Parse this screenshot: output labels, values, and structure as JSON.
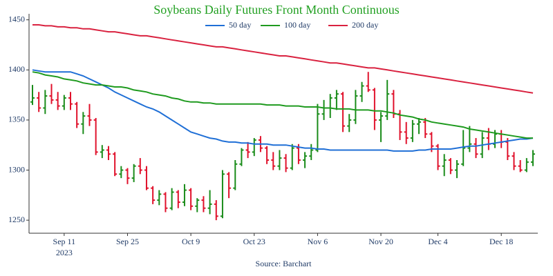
{
  "chart_data": {
    "type": "ohlc",
    "title": "Soybeans Daily Futures Front Month Continuous",
    "title_color": "#22a022",
    "categories": [
      null,
      null,
      null,
      null,
      null,
      "Sep 11",
      null,
      null,
      null,
      null,
      null,
      null,
      null,
      null,
      null,
      "Sep 25",
      null,
      null,
      null,
      null,
      null,
      null,
      null,
      null,
      null,
      "Oct 9",
      null,
      null,
      null,
      null,
      null,
      null,
      null,
      null,
      null,
      "Oct 23",
      null,
      null,
      null,
      null,
      null,
      null,
      null,
      null,
      null,
      "Nov 6",
      null,
      null,
      null,
      null,
      null,
      null,
      null,
      null,
      null,
      "Nov 20",
      null,
      null,
      null,
      null,
      null,
      null,
      null,
      null,
      "Dec 4",
      null,
      null,
      null,
      null,
      null,
      null,
      null,
      null,
      null,
      "Dec 18",
      null,
      null,
      null,
      null,
      null
    ],
    "year_label": "2023",
    "source": "Source: Barchart",
    "up_color": "#1a8c1a",
    "down_color": "#e0112b",
    "ohlc": [
      [
        1368,
        1385,
        1365,
        1372
      ],
      [
        1372,
        1378,
        1358,
        1362
      ],
      [
        1362,
        1380,
        1356,
        1374
      ],
      [
        1374,
        1386,
        1366,
        1370
      ],
      [
        1370,
        1378,
        1360,
        1364
      ],
      [
        1364,
        1375,
        1360,
        1372
      ],
      [
        1372,
        1378,
        1360,
        1366
      ],
      [
        1366,
        1368,
        1342,
        1346
      ],
      [
        1346,
        1358,
        1336,
        1354
      ],
      [
        1354,
        1366,
        1344,
        1350
      ],
      [
        1350,
        1352,
        1315,
        1318
      ],
      [
        1318,
        1325,
        1312,
        1320
      ],
      [
        1320,
        1324,
        1310,
        1316
      ],
      [
        1316,
        1318,
        1294,
        1296
      ],
      [
        1296,
        1304,
        1292,
        1300
      ],
      [
        1300,
        1302,
        1286,
        1292
      ],
      [
        1292,
        1306,
        1288,
        1304
      ],
      [
        1304,
        1312,
        1296,
        1300
      ],
      [
        1300,
        1304,
        1280,
        1282
      ],
      [
        1282,
        1284,
        1266,
        1270
      ],
      [
        1270,
        1280,
        1265,
        1276
      ],
      [
        1276,
        1278,
        1258,
        1262
      ],
      [
        1262,
        1282,
        1260,
        1278
      ],
      [
        1278,
        1280,
        1262,
        1268
      ],
      [
        1268,
        1286,
        1264,
        1280
      ],
      [
        1280,
        1282,
        1260,
        1264
      ],
      [
        1264,
        1272,
        1258,
        1270
      ],
      [
        1270,
        1274,
        1258,
        1262
      ],
      [
        1262,
        1280,
        1256,
        1266
      ],
      [
        1266,
        1270,
        1250,
        1254
      ],
      [
        1254,
        1300,
        1252,
        1296
      ],
      [
        1296,
        1298,
        1272,
        1282
      ],
      [
        1282,
        1310,
        1280,
        1306
      ],
      [
        1306,
        1322,
        1304,
        1320
      ],
      [
        1320,
        1328,
        1312,
        1318
      ],
      [
        1318,
        1332,
        1314,
        1330
      ],
      [
        1330,
        1334,
        1318,
        1322
      ],
      [
        1322,
        1324,
        1306,
        1310
      ],
      [
        1310,
        1318,
        1300,
        1304
      ],
      [
        1304,
        1320,
        1300,
        1312
      ],
      [
        1312,
        1316,
        1298,
        1302
      ],
      [
        1302,
        1326,
        1300,
        1322
      ],
      [
        1322,
        1326,
        1306,
        1310
      ],
      [
        1310,
        1318,
        1302,
        1314
      ],
      [
        1314,
        1326,
        1310,
        1320
      ],
      [
        1320,
        1366,
        1318,
        1356
      ],
      [
        1356,
        1370,
        1350,
        1362
      ],
      [
        1362,
        1376,
        1352,
        1372
      ],
      [
        1372,
        1380,
        1360,
        1376
      ],
      [
        1376,
        1378,
        1338,
        1344
      ],
      [
        1344,
        1356,
        1338,
        1350
      ],
      [
        1350,
        1380,
        1346,
        1374
      ],
      [
        1374,
        1388,
        1368,
        1384
      ],
      [
        1384,
        1398,
        1378,
        1380
      ],
      [
        1380,
        1382,
        1340,
        1350
      ],
      [
        1350,
        1358,
        1328,
        1354
      ],
      [
        1354,
        1390,
        1350,
        1376
      ],
      [
        1376,
        1380,
        1352,
        1356
      ],
      [
        1356,
        1360,
        1330,
        1338
      ],
      [
        1338,
        1348,
        1326,
        1332
      ],
      [
        1332,
        1350,
        1328,
        1346
      ],
      [
        1346,
        1352,
        1336,
        1348
      ],
      [
        1348,
        1352,
        1332,
        1336
      ],
      [
        1336,
        1338,
        1318,
        1324
      ],
      [
        1324,
        1326,
        1300,
        1304
      ],
      [
        1304,
        1316,
        1294,
        1310
      ],
      [
        1310,
        1312,
        1296,
        1300
      ],
      [
        1300,
        1310,
        1292,
        1306
      ],
      [
        1306,
        1340,
        1304,
        1322
      ],
      [
        1322,
        1344,
        1318,
        1326
      ],
      [
        1326,
        1332,
        1312,
        1316
      ],
      [
        1316,
        1338,
        1312,
        1332
      ],
      [
        1332,
        1342,
        1320,
        1326
      ],
      [
        1326,
        1340,
        1322,
        1336
      ],
      [
        1336,
        1340,
        1322,
        1328
      ],
      [
        1328,
        1332,
        1310,
        1314
      ],
      [
        1314,
        1318,
        1300,
        1304
      ],
      [
        1304,
        1310,
        1298,
        1300
      ],
      [
        1300,
        1312,
        1298,
        1308
      ],
      [
        1308,
        1320,
        1304,
        1316
      ]
    ],
    "series": [
      {
        "name": "50 day",
        "color": "#1f6fd6",
        "values": [
          1400,
          1399,
          1398,
          1398,
          1398,
          1398,
          1398,
          1396,
          1394,
          1391,
          1388,
          1385,
          1382,
          1378,
          1375,
          1372,
          1369,
          1366,
          1363,
          1361,
          1358,
          1354,
          1350,
          1346,
          1342,
          1338,
          1336,
          1334,
          1332,
          1331,
          1329,
          1328,
          1328,
          1327,
          1327,
          1326,
          1326,
          1326,
          1325,
          1325,
          1325,
          1324,
          1323,
          1322,
          1322,
          1321,
          1321,
          1320,
          1320,
          1320,
          1320,
          1320,
          1320,
          1320,
          1320,
          1320,
          1320,
          1319,
          1319,
          1319,
          1319,
          1320,
          1320,
          1321,
          1321,
          1321,
          1321,
          1322,
          1323,
          1324,
          1324,
          1325,
          1326,
          1327,
          1328,
          1329,
          1330,
          1331,
          1331,
          1332
        ]
      },
      {
        "name": "100 day",
        "color": "#1e9a1e",
        "values": [
          1398,
          1397,
          1395,
          1394,
          1393,
          1391,
          1390,
          1389,
          1387,
          1386,
          1385,
          1385,
          1384,
          1383,
          1383,
          1382,
          1380,
          1379,
          1378,
          1376,
          1375,
          1374,
          1372,
          1371,
          1369,
          1368,
          1368,
          1367,
          1367,
          1366,
          1366,
          1366,
          1366,
          1366,
          1366,
          1366,
          1366,
          1365,
          1365,
          1365,
          1364,
          1364,
          1364,
          1363,
          1363,
          1363,
          1362,
          1362,
          1361,
          1361,
          1361,
          1360,
          1360,
          1360,
          1359,
          1359,
          1358,
          1357,
          1355,
          1354,
          1353,
          1351,
          1350,
          1348,
          1347,
          1346,
          1345,
          1344,
          1343,
          1341,
          1340,
          1339,
          1338,
          1337,
          1336,
          1335,
          1334,
          1333,
          1332,
          1332
        ]
      },
      {
        "name": "200 day",
        "color": "#d9213f",
        "values": [
          1445,
          1445,
          1444,
          1444,
          1443,
          1443,
          1442,
          1442,
          1441,
          1441,
          1440,
          1439,
          1438,
          1438,
          1437,
          1436,
          1435,
          1434,
          1434,
          1433,
          1432,
          1431,
          1430,
          1429,
          1428,
          1427,
          1426,
          1425,
          1424,
          1423,
          1423,
          1422,
          1421,
          1420,
          1419,
          1418,
          1417,
          1416,
          1415,
          1414,
          1414,
          1413,
          1412,
          1411,
          1410,
          1409,
          1408,
          1407,
          1407,
          1406,
          1405,
          1404,
          1403,
          1402,
          1402,
          1401,
          1400,
          1399,
          1398,
          1397,
          1396,
          1395,
          1394,
          1393,
          1392,
          1391,
          1390,
          1389,
          1388,
          1387,
          1386,
          1385,
          1384,
          1383,
          1382,
          1381,
          1380,
          1379,
          1378,
          1377
        ]
      }
    ],
    "ylim": [
      1237,
      1456
    ],
    "yticks": [
      1250,
      1300,
      1350,
      1400,
      1450
    ],
    "legend": "top"
  }
}
